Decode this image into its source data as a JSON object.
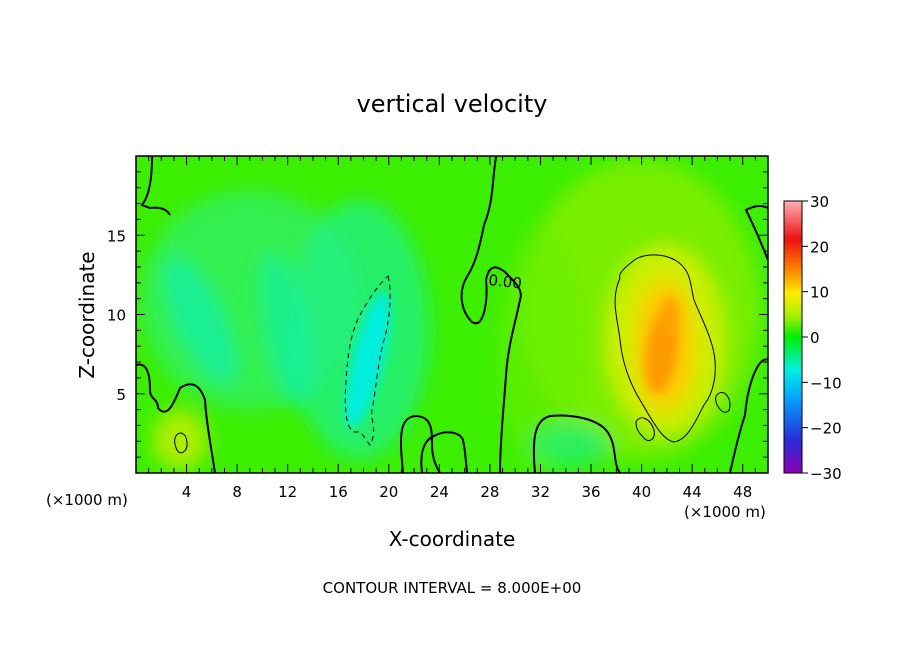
{
  "chart_data": {
    "type": "heatmap",
    "title": "vertical velocity",
    "xlabel": "X-coordinate",
    "ylabel": "Z-coordinate",
    "x_unit_left": "(×1000 m)",
    "x_unit_right": "(×1000 m)",
    "xlim": [
      0,
      50
    ],
    "ylim": [
      0,
      20
    ],
    "xticks": [
      4,
      8,
      12,
      16,
      20,
      24,
      28,
      32,
      36,
      40,
      44,
      48
    ],
    "yticks": [
      5,
      10,
      15
    ],
    "colorbar": {
      "range": [
        -30,
        30
      ],
      "ticks": [
        "30",
        "20",
        "10",
        "0",
        "−10",
        "−20",
        "−30"
      ],
      "stops": [
        "#8a00b4",
        "#2a2ad8",
        "#00a8ff",
        "#00f0e0",
        "#00ee00",
        "#aaee00",
        "#ffee00",
        "#ff8c00",
        "#ee1010",
        "#ffb0b8"
      ]
    },
    "contour_label": "0.00",
    "footer": "CONTOUR INTERVAL = 8.000E+00",
    "features": [
      {
        "x": 41.5,
        "z": 8.0,
        "w": 14
      },
      {
        "x": 42.0,
        "z": 9.0,
        "w": 12
      },
      {
        "x": 18.5,
        "z": 7.5,
        "w": -6
      },
      {
        "x": 3.5,
        "z": 1.5,
        "w": 4
      }
    ]
  },
  "colors": {
    "background": "#00ee00",
    "axis": "#000000"
  }
}
